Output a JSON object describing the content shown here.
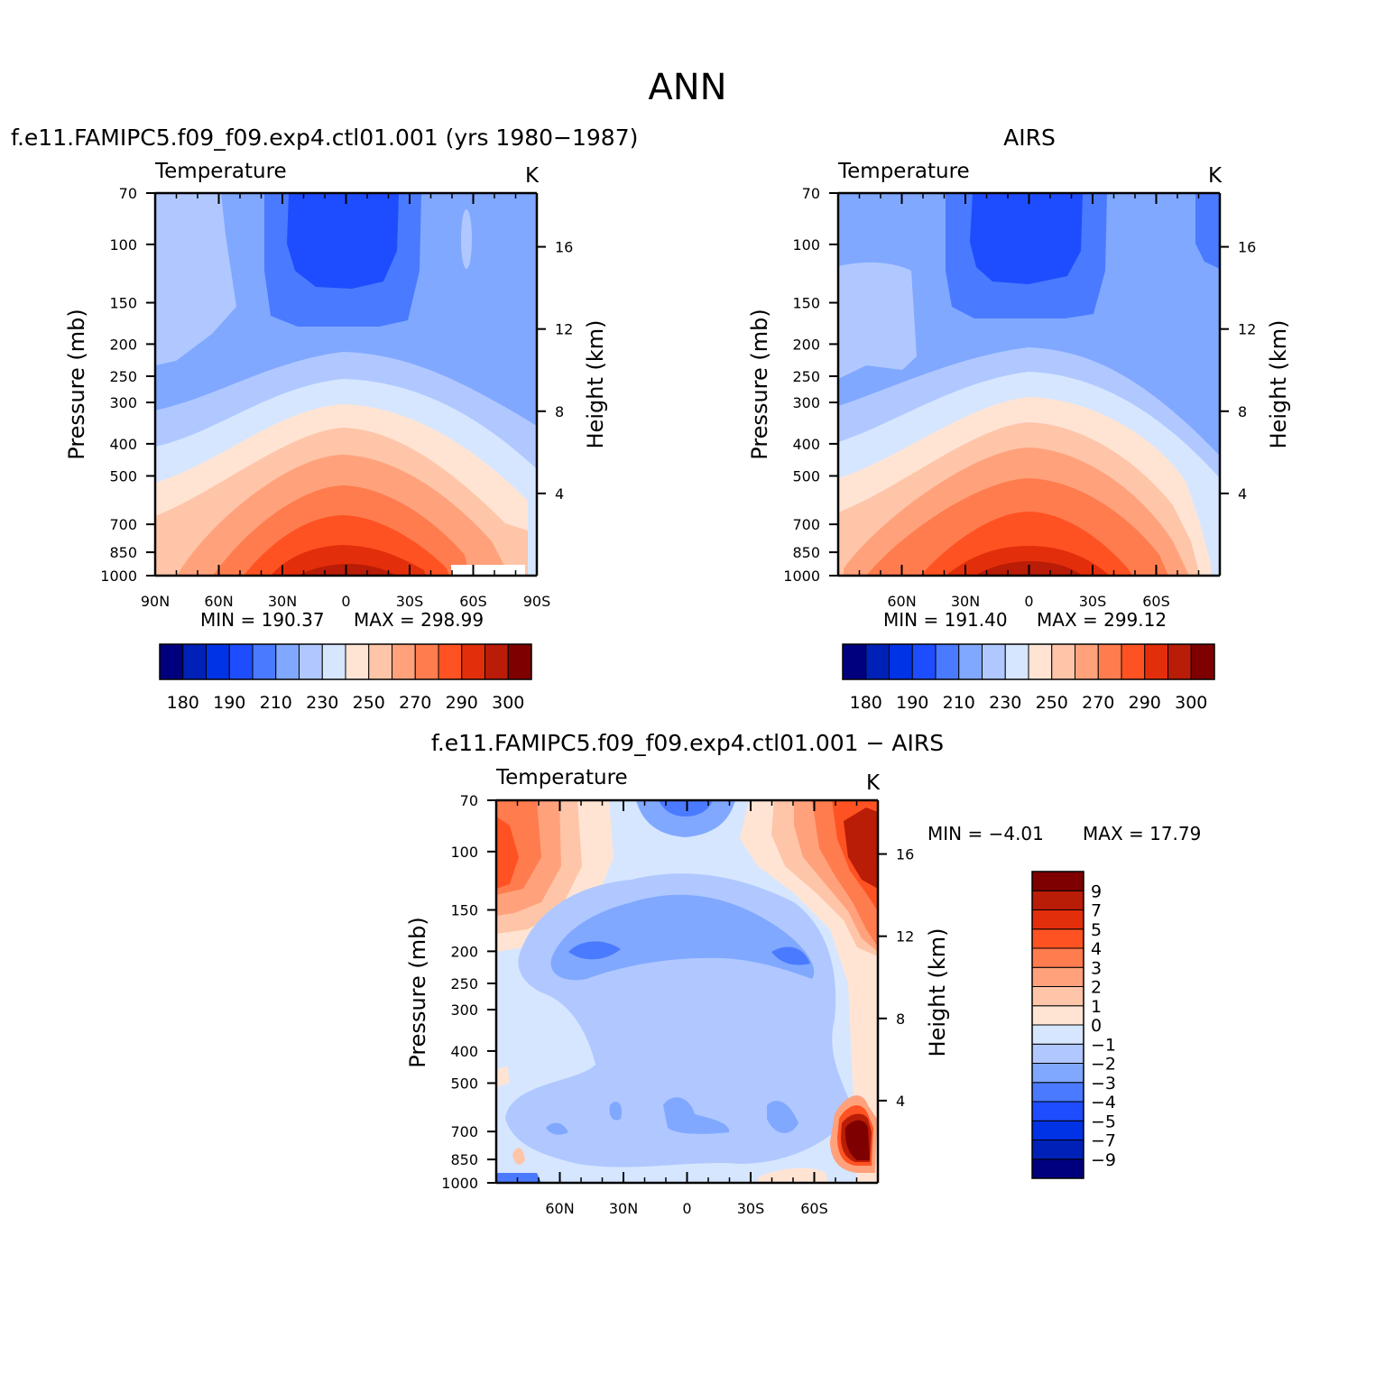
{
  "figure": {
    "title": "ANN"
  },
  "chart_data": [
    {
      "id": "model",
      "type": "heatmap",
      "title": "f.e11.FAMIPC5.f09_f09.exp4.ctl01.001 (yrs 1980−1987)",
      "variable": "Temperature",
      "units": "K",
      "ylabel": "Pressure (mb)",
      "y2label": "Height (km)",
      "x_ticks": [
        "90N",
        "60N",
        "30N",
        "0",
        "30S",
        "60S",
        "90S"
      ],
      "y_ticks": [
        70,
        100,
        150,
        200,
        250,
        300,
        400,
        500,
        700,
        850,
        1000
      ],
      "y2_ticks": [
        16,
        12,
        8,
        4
      ],
      "ylim": [
        1000,
        70
      ],
      "xlim": [
        90,
        -90
      ],
      "min_label": "MIN = 190.37",
      "max_label": "MAX = 298.99",
      "min": 190.37,
      "max": 298.99,
      "colorbar": {
        "orientation": "horizontal",
        "colors": [
          "#00007f",
          "#0021b8",
          "#0033e5",
          "#1e4dff",
          "#4a7aff",
          "#80a8ff",
          "#b0c8ff",
          "#d6e6ff",
          "#ffe4d4",
          "#ffc5a8",
          "#ffa27c",
          "#ff7c4f",
          "#ff5222",
          "#e32e0b",
          "#b91c07",
          "#7f0000"
        ],
        "labels": [
          "180",
          "190",
          "210",
          "230",
          "250",
          "270",
          "290",
          "300"
        ]
      }
    },
    {
      "id": "obs",
      "type": "heatmap",
      "title": "AIRS",
      "variable": "Temperature",
      "units": "K",
      "ylabel": "Pressure (mb)",
      "y2label": "Height (km)",
      "x_ticks": [
        "60N",
        "30N",
        "0",
        "30S",
        "60S"
      ],
      "y_ticks": [
        70,
        100,
        150,
        200,
        250,
        300,
        400,
        500,
        700,
        850,
        1000
      ],
      "y2_ticks": [
        16,
        12,
        8,
        4
      ],
      "ylim": [
        1000,
        70
      ],
      "min_label": "MIN = 191.40",
      "max_label": "MAX = 299.12",
      "min": 191.4,
      "max": 299.12,
      "colorbar": {
        "orientation": "horizontal",
        "colors": [
          "#00007f",
          "#0021b8",
          "#0033e5",
          "#1e4dff",
          "#4a7aff",
          "#80a8ff",
          "#b0c8ff",
          "#d6e6ff",
          "#ffe4d4",
          "#ffc5a8",
          "#ffa27c",
          "#ff7c4f",
          "#ff5222",
          "#e32e0b",
          "#b91c07",
          "#7f0000"
        ],
        "labels": [
          "180",
          "190",
          "210",
          "230",
          "250",
          "270",
          "290",
          "300"
        ]
      }
    },
    {
      "id": "diff",
      "type": "heatmap",
      "title": "f.e11.FAMIPC5.f09_f09.exp4.ctl01.001 − AIRS",
      "variable": "Temperature",
      "units": "K",
      "ylabel": "Pressure (mb)",
      "y2label": "Height (km)",
      "x_ticks": [
        "60N",
        "30N",
        "0",
        "30S",
        "60S"
      ],
      "y_ticks": [
        70,
        100,
        150,
        200,
        250,
        300,
        400,
        500,
        700,
        850,
        1000
      ],
      "y2_ticks": [
        16,
        12,
        8,
        4
      ],
      "ylim": [
        1000,
        70
      ],
      "min_label": "MIN =  −4.01",
      "max_label": "MAX =  17.79",
      "min": -4.01,
      "max": 17.79,
      "colorbar": {
        "orientation": "vertical",
        "colors": [
          "#00007f",
          "#0021b8",
          "#0033e5",
          "#1e4dff",
          "#4a7aff",
          "#80a8ff",
          "#b0c8ff",
          "#d6e6ff",
          "#ffe4d4",
          "#ffc5a8",
          "#ffa27c",
          "#ff7c4f",
          "#ff5222",
          "#e32e0b",
          "#b91c07",
          "#7f0000"
        ],
        "labels": [
          "−9",
          "−7",
          "−5",
          "−4",
          "−3",
          "−2",
          "−1",
          "0",
          "1",
          "2",
          "3",
          "4",
          "5",
          "7",
          "9"
        ]
      }
    }
  ]
}
